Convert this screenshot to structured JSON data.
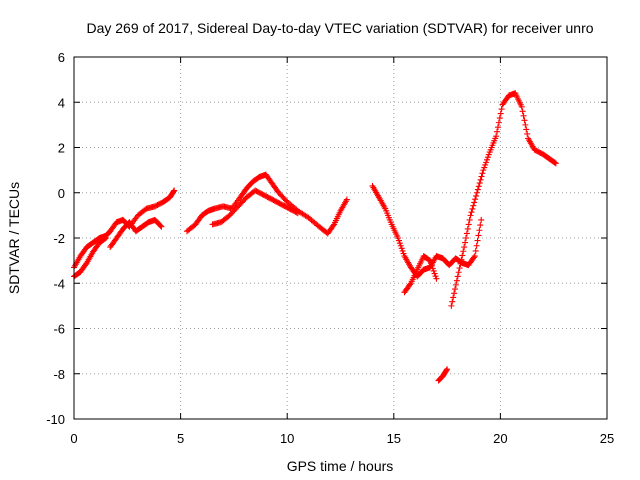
{
  "chart_data": {
    "type": "scatter",
    "title": "Day 269 of 2017, Sidereal Day-to-day VTEC variation (SDTVAR) for receiver unro",
    "xlabel": "GPS time / hours",
    "ylabel": "SDTVAR / TECUs",
    "xlim": [
      0,
      25
    ],
    "ylim": [
      -10,
      6
    ],
    "xticks": [
      0,
      5,
      10,
      15,
      20,
      25
    ],
    "yticks": [
      -10,
      -8,
      -6,
      -4,
      -2,
      0,
      2,
      4,
      6
    ],
    "xtick_labels": [
      "0",
      "5",
      "10",
      "15",
      "20",
      "25"
    ],
    "ytick_labels": [
      "-10",
      "-8",
      "-6",
      "-4",
      "-2",
      "0",
      "2",
      "4",
      "6"
    ],
    "grid": true,
    "legend": "none",
    "marker": "plus",
    "color": "#ff0000",
    "series": [
      {
        "x": [
          0.0,
          0.3,
          0.6,
          0.9,
          1.2,
          1.5,
          1.7,
          2.0,
          2.3,
          2.6,
          3.0,
          3.4,
          3.8,
          4.2,
          4.5,
          4.7
        ],
        "y": [
          -3.3,
          -2.8,
          -2.4,
          -2.2,
          -2.0,
          -1.9,
          -1.7,
          -1.3,
          -1.2,
          -1.5,
          -1.0,
          -0.7,
          -0.6,
          -0.4,
          -0.2,
          0.1
        ]
      },
      {
        "x": [
          0.0,
          0.3,
          0.6,
          0.9,
          1.2,
          1.5
        ],
        "y": [
          -3.7,
          -3.5,
          -3.1,
          -2.6,
          -2.2,
          -2.0
        ]
      },
      {
        "x": [
          1.7,
          2.0,
          2.3,
          2.6,
          2.9,
          3.2,
          3.5,
          3.8,
          4.1
        ],
        "y": [
          -2.4,
          -2.0,
          -1.6,
          -1.3,
          -1.7,
          -1.5,
          -1.3,
          -1.2,
          -1.5
        ]
      },
      {
        "x": [
          5.3,
          5.7,
          6.0,
          6.3,
          6.6,
          7.0,
          7.4,
          7.8,
          8.1,
          8.4,
          8.7,
          9.0,
          9.3,
          9.6,
          10.0,
          10.5,
          11.0,
          11.5,
          11.9,
          12.2,
          12.5,
          12.8
        ],
        "y": [
          -1.7,
          -1.4,
          -1.0,
          -0.8,
          -0.7,
          -0.6,
          -0.7,
          -0.2,
          0.2,
          0.5,
          0.7,
          0.8,
          0.4,
          0.0,
          -0.4,
          -0.8,
          -1.1,
          -1.5,
          -1.8,
          -1.4,
          -0.8,
          -0.3
        ]
      },
      {
        "x": [
          6.5,
          6.9,
          7.3,
          7.7,
          8.1,
          8.5,
          8.9,
          9.3,
          9.7,
          10.1,
          10.5
        ],
        "y": [
          -1.4,
          -1.3,
          -1.0,
          -0.6,
          -0.2,
          0.1,
          -0.1,
          -0.3,
          -0.5,
          -0.7,
          -0.9
        ]
      },
      {
        "x": [
          14.0,
          14.3,
          14.6,
          14.9,
          15.2,
          15.5,
          15.8,
          16.1,
          16.4,
          16.7,
          17.0,
          17.3,
          17.6,
          17.9,
          18.2,
          18.5,
          18.8,
          19.1
        ],
        "y": [
          0.3,
          -0.2,
          -0.7,
          -1.4,
          -2.0,
          -2.8,
          -3.3,
          -3.7,
          -3.4,
          -3.3,
          -2.8,
          -2.9,
          -3.2,
          -2.9,
          -3.1,
          -3.2,
          -2.8,
          -1.2
        ]
      },
      {
        "x": [
          15.5,
          15.8,
          16.1,
          16.4,
          16.7,
          17.0
        ],
        "y": [
          -4.4,
          -4.0,
          -3.4,
          -2.8,
          -3.0,
          -3.8
        ]
      },
      {
        "x": [
          17.1,
          17.3,
          17.5
        ],
        "y": [
          -8.3,
          -8.1,
          -7.8
        ]
      },
      {
        "x": [
          17.7,
          18.0,
          18.3,
          18.6,
          18.9,
          19.2,
          19.5,
          19.8,
          20.1,
          20.4,
          20.7,
          21.0,
          21.3,
          21.6,
          22.0,
          22.3,
          22.6
        ],
        "y": [
          -5.0,
          -3.7,
          -2.4,
          -1.0,
          0.0,
          1.0,
          1.8,
          2.5,
          3.9,
          4.3,
          4.4,
          3.8,
          2.4,
          1.9,
          1.7,
          1.5,
          1.3
        ]
      }
    ]
  }
}
